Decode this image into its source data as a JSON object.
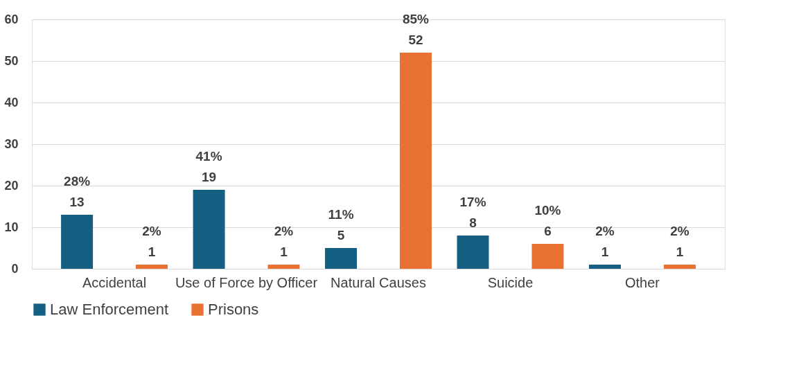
{
  "chart_data": {
    "type": "bar",
    "categories": [
      "Accidental",
      "Use of Force by Officer",
      "Natural Causes",
      "Suicide",
      "Other"
    ],
    "series": [
      {
        "name": "Law Enforcement",
        "color": "#156082",
        "values": [
          13,
          19,
          5,
          8,
          1
        ],
        "value_labels": [
          "28%\n13",
          "41%\n19",
          "11%\n5",
          "17%\n8",
          "2%\n1"
        ]
      },
      {
        "name": "Prisons",
        "color": "#e97132",
        "values": [
          1,
          1,
          52,
          6,
          1
        ],
        "value_labels": [
          "2%\n1",
          "2%\n1",
          "85%\n52",
          "10%\n6",
          "2%\n1"
        ]
      }
    ],
    "ylim": [
      0,
      60
    ],
    "yticks": [
      0,
      10,
      20,
      30,
      40,
      50,
      60
    ],
    "grid": "y",
    "legend": "bottom"
  }
}
